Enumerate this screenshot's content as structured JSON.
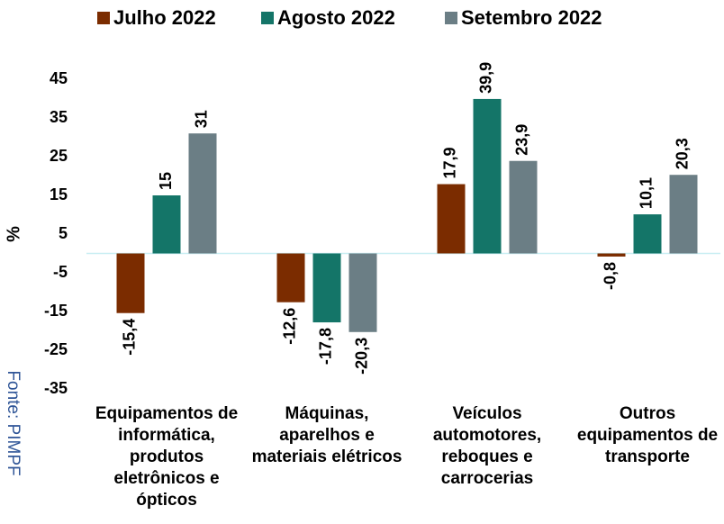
{
  "chart_data": {
    "type": "bar",
    "y_label": "%",
    "source": "Fonte: PIMPF",
    "categories": [
      "Equipamentos de informática, produtos eletrônicos e ópticos",
      "Máquinas, aparelhos e materiais elétricos",
      "Veículos automotores, reboques e carrocerias",
      "Outros equipamentos de transporte"
    ],
    "series": [
      {
        "name": "Julho 2022",
        "color": "#7b2c00",
        "values": [
          -15.4,
          -12.6,
          17.9,
          -0.8
        ],
        "value_labels": [
          "-15,4",
          "-12,6",
          "17,9",
          "-0,8"
        ]
      },
      {
        "name": "Agosto 2022",
        "color": "#147568",
        "values": [
          15,
          -17.8,
          39.9,
          10.1
        ],
        "value_labels": [
          "15",
          "-17,8",
          "39,9",
          "10,1"
        ]
      },
      {
        "name": "Setembro 2022",
        "color": "#6b7e85",
        "values": [
          31,
          -20.3,
          23.9,
          20.3
        ],
        "value_labels": [
          "31",
          "-20,3",
          "23,9",
          "20,3"
        ]
      }
    ],
    "ylim": [
      -35,
      45
    ],
    "yticks": [
      -35,
      -25,
      -15,
      -5,
      5,
      15,
      25,
      35,
      45
    ],
    "legend": "top"
  }
}
